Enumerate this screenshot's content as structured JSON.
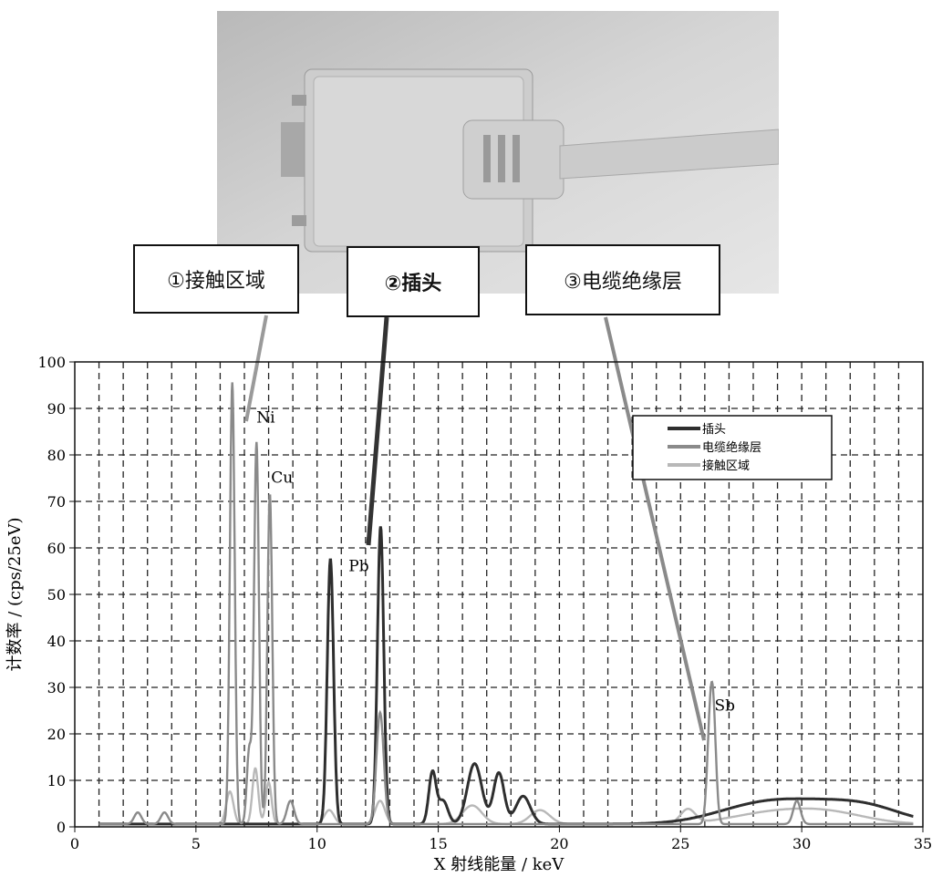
{
  "callouts": [
    "①接触区域",
    "②插头",
    "③电缆绝缘层"
  ],
  "chart_data": {
    "type": "line",
    "xlabel": "X 射线能量 / keV",
    "ylabel": "计数率 / (cps/25eV)",
    "xlim": [
      0,
      35
    ],
    "ylim": [
      0,
      100
    ],
    "xticks": [
      0,
      5,
      10,
      15,
      20,
      25,
      30,
      35
    ],
    "yticks": [
      0,
      10,
      20,
      30,
      40,
      50,
      60,
      70,
      80,
      90,
      100
    ],
    "grid": true,
    "legend_position": "top-right",
    "annotations": [
      {
        "text": "Ni",
        "x": 7.5,
        "y": 87
      },
      {
        "text": "Cu",
        "x": 8.1,
        "y": 74
      },
      {
        "text": "Pb",
        "x": 11.3,
        "y": 55
      },
      {
        "text": "Sb",
        "x": 26.4,
        "y": 25
      }
    ],
    "series": [
      {
        "name": "插头",
        "color": "#2e2e2e",
        "peaks": [
          [
            10.55,
            57,
            0.13
          ],
          [
            12.62,
            64,
            0.13
          ],
          [
            14.76,
            11,
            0.15
          ],
          [
            15.2,
            5,
            0.2
          ],
          [
            16.5,
            13,
            0.3
          ],
          [
            17.5,
            11,
            0.22
          ],
          [
            18.5,
            6,
            0.3
          ],
          [
            28,
            3,
            1.8
          ],
          [
            30.5,
            3.5,
            2.0
          ],
          [
            32.8,
            2.5,
            1.5
          ]
        ]
      },
      {
        "name": "电缆绝缘层",
        "color": "#8a8a8a",
        "peaks": [
          [
            2.6,
            2.5,
            0.15
          ],
          [
            3.7,
            2.5,
            0.15
          ],
          [
            6.5,
            95,
            0.1
          ],
          [
            7.2,
            16,
            0.1
          ],
          [
            7.5,
            82,
            0.1
          ],
          [
            8.05,
            71,
            0.1
          ],
          [
            8.9,
            5,
            0.15
          ],
          [
            12.6,
            24,
            0.15
          ],
          [
            26.2,
            16,
            0.12
          ],
          [
            26.35,
            21,
            0.12
          ],
          [
            29.8,
            5,
            0.15
          ]
        ]
      },
      {
        "name": "接触区域",
        "color": "#b8b8b8",
        "peaks": [
          [
            6.4,
            7,
            0.15
          ],
          [
            7.45,
            12,
            0.12
          ],
          [
            8.0,
            9,
            0.12
          ],
          [
            10.5,
            3,
            0.2
          ],
          [
            12.6,
            5,
            0.2
          ],
          [
            16.4,
            4,
            0.4
          ],
          [
            19.2,
            3,
            0.4
          ],
          [
            25.3,
            3,
            0.3
          ],
          [
            28.5,
            2,
            1.6
          ],
          [
            31,
            2.5,
            1.6
          ]
        ]
      }
    ]
  }
}
